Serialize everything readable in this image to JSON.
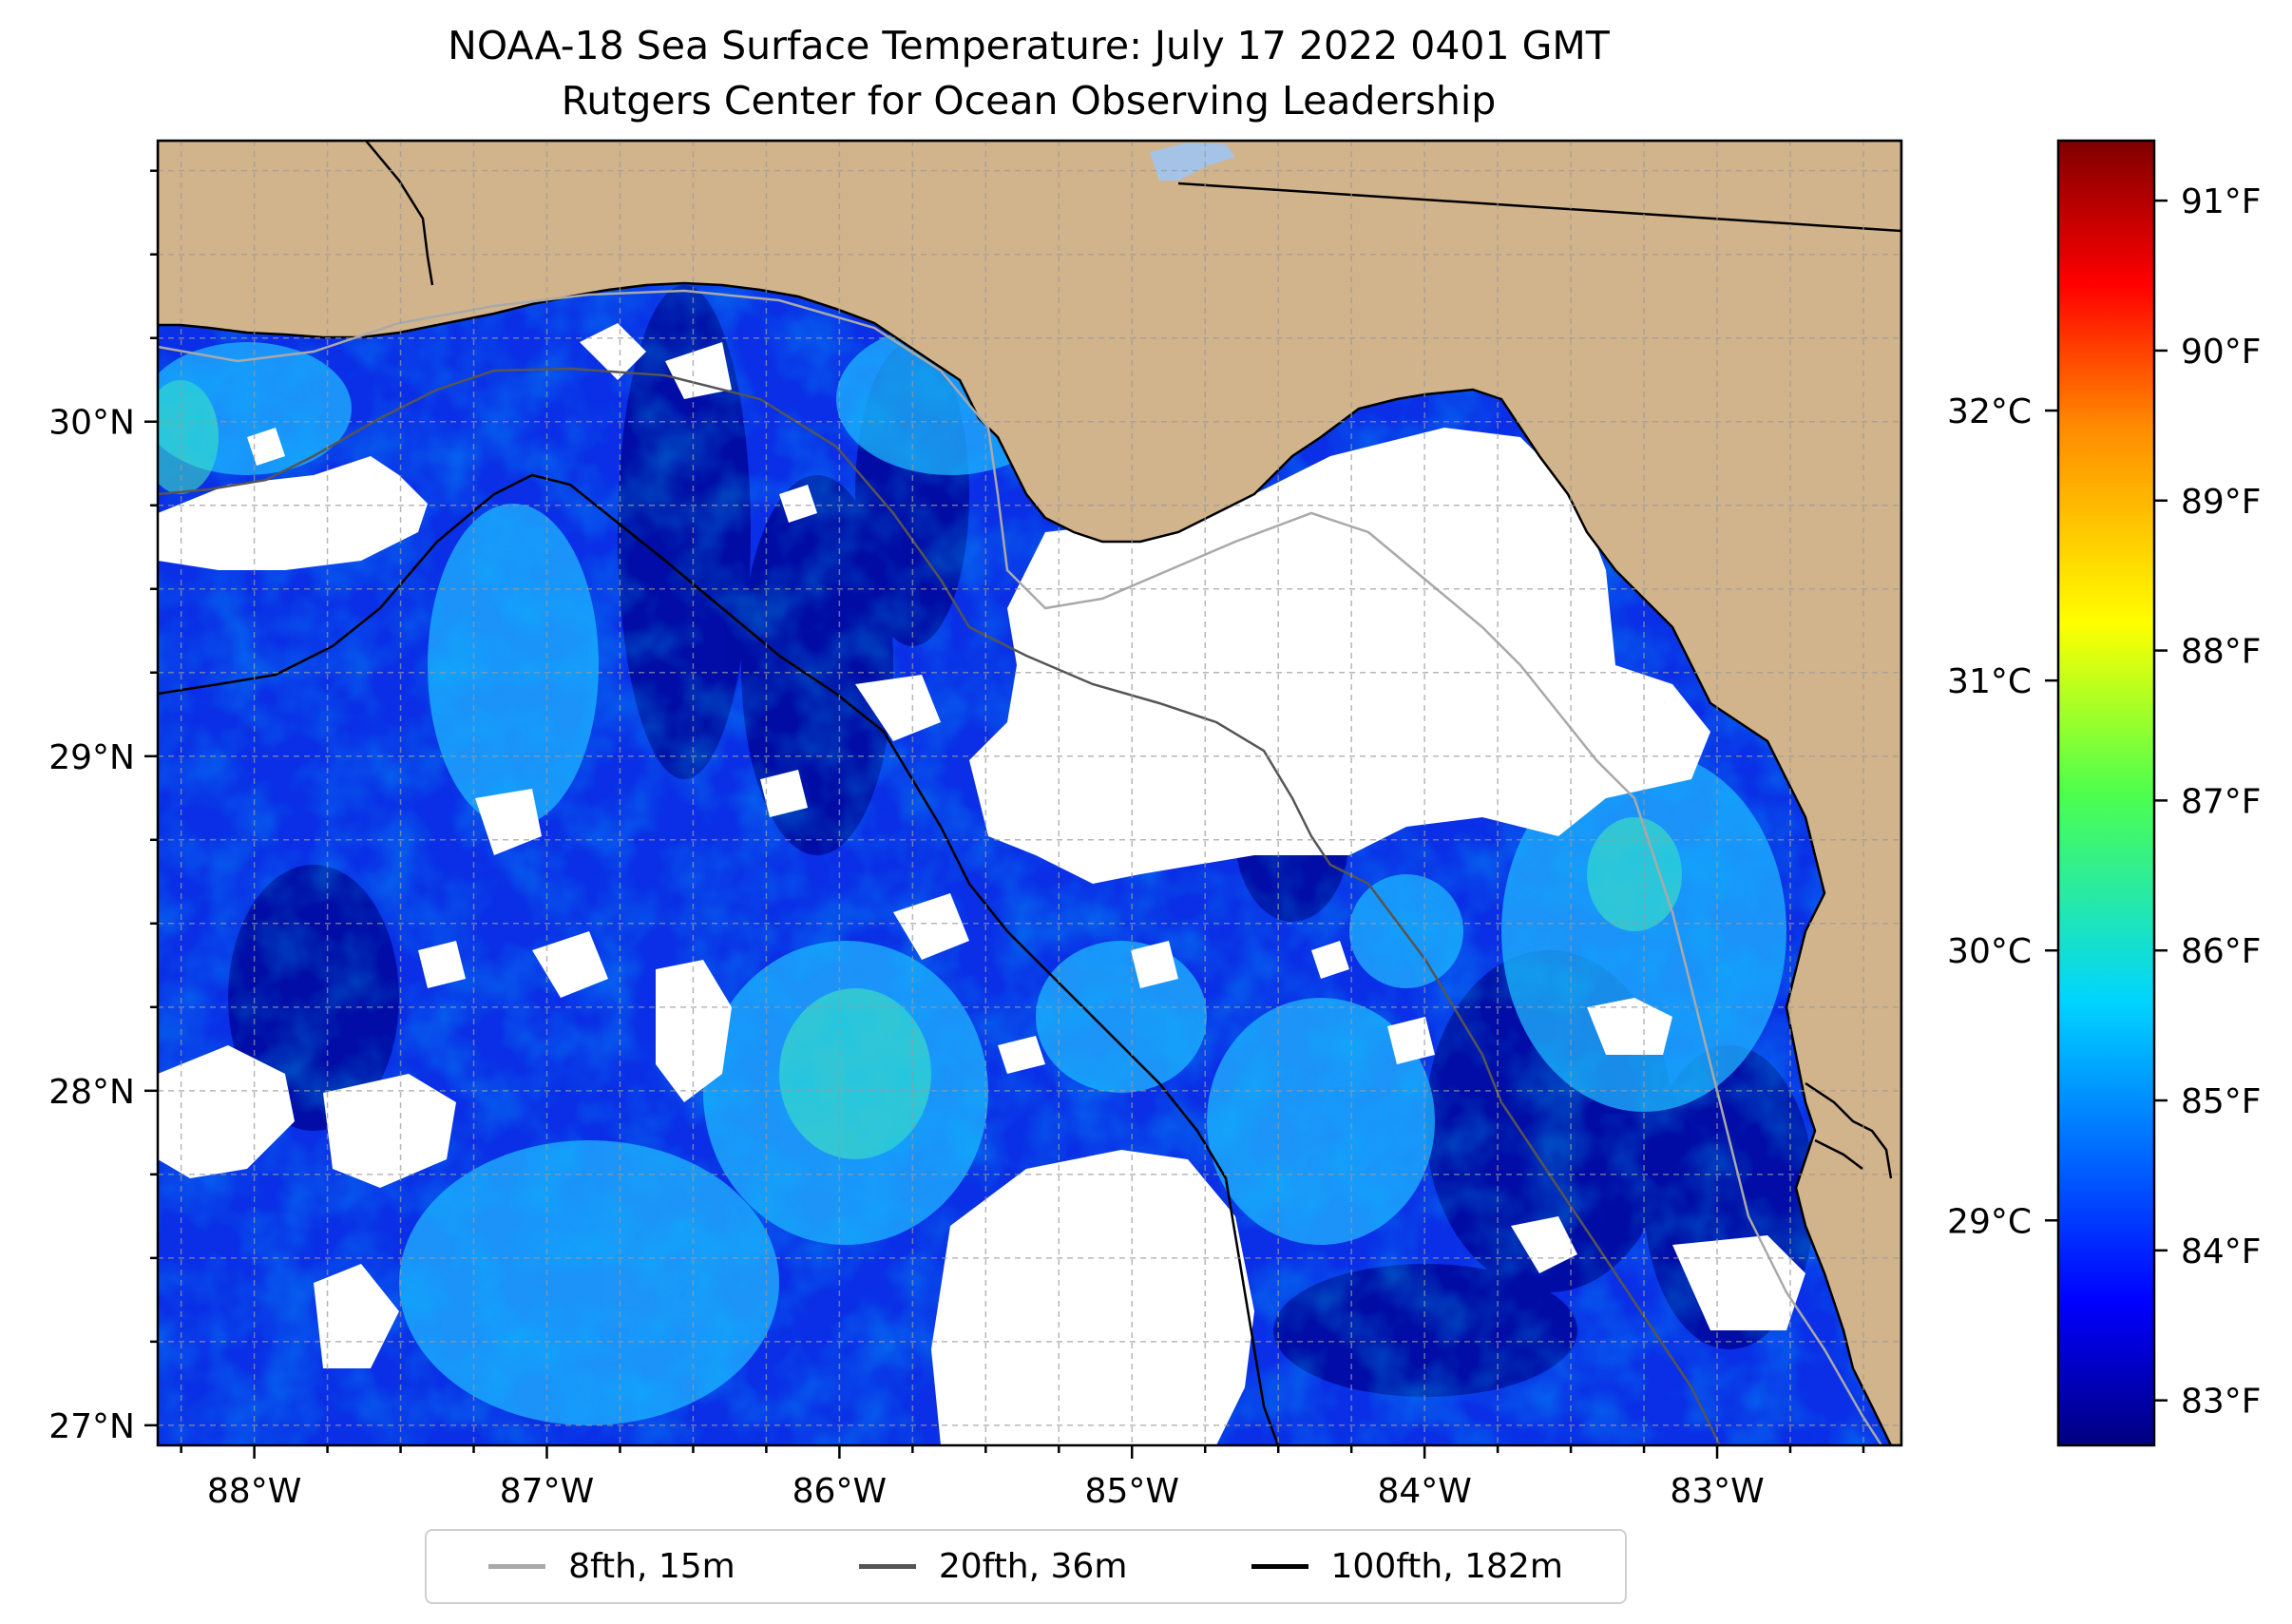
{
  "title_line1": "NOAA-18 Sea Surface Temperature: July 17 2022 0401 GMT",
  "title_line2": "Rutgers Center for Ocean Observing Leadership",
  "map": {
    "lon_range": [
      -88.33,
      -82.37
    ],
    "lat_range": [
      26.94,
      30.84
    ],
    "lon_ticks": [
      {
        "value": -88,
        "label": "88°W"
      },
      {
        "value": -87,
        "label": "87°W"
      },
      {
        "value": -86,
        "label": "86°W"
      },
      {
        "value": -85,
        "label": "85°W"
      },
      {
        "value": -84,
        "label": "84°W"
      },
      {
        "value": -83,
        "label": "83°W"
      }
    ],
    "lat_ticks": [
      {
        "value": 27,
        "label": "27°N"
      },
      {
        "value": 28,
        "label": "28°N"
      },
      {
        "value": 29,
        "label": "29°N"
      },
      {
        "value": 30,
        "label": "30°N"
      }
    ],
    "land_color": "#d2b48c",
    "cloud_color": "#ffffff"
  },
  "colorbar": {
    "colormap": "jet",
    "fahrenheit_ticks": [
      {
        "value": 83,
        "label": "83°F"
      },
      {
        "value": 84,
        "label": "84°F"
      },
      {
        "value": 85,
        "label": "85°F"
      },
      {
        "value": 86,
        "label": "86°F"
      },
      {
        "value": 87,
        "label": "87°F"
      },
      {
        "value": 88,
        "label": "88°F"
      },
      {
        "value": 89,
        "label": "89°F"
      },
      {
        "value": 90,
        "label": "90°F"
      },
      {
        "value": 91,
        "label": "91°F"
      }
    ],
    "celsius_ticks": [
      {
        "value": 29,
        "label": "29°C"
      },
      {
        "value": 30,
        "label": "30°C"
      },
      {
        "value": 31,
        "label": "31°C"
      },
      {
        "value": 32,
        "label": "32°C"
      }
    ],
    "f_range": [
      82.7,
      91.4
    ]
  },
  "legend": [
    {
      "label": "8fth, 15m",
      "color": "#a9a9a9"
    },
    {
      "label": "20fth, 36m",
      "color": "#555555"
    },
    {
      "label": "100fth, 182m",
      "color": "#000000"
    }
  ]
}
